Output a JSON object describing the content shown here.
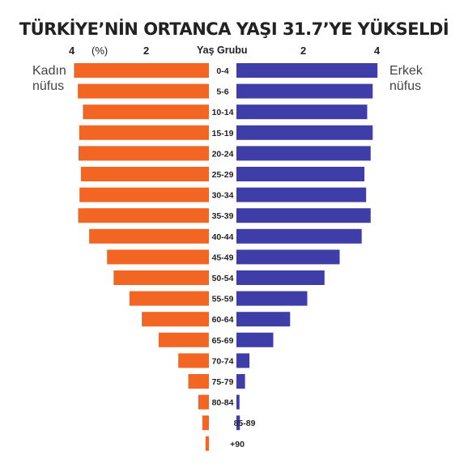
{
  "chart_data": {
    "type": "bar",
    "title": "TÜRKİYE’NİN ORTANCA YAŞI 31.7’YE YÜKSELDİ",
    "unit_label": "(%)",
    "category_label": "Yaş Grubu",
    "left_label": [
      "Kadın",
      "nüfus"
    ],
    "right_label": [
      "Erkek",
      "nüfus"
    ],
    "axis_ticks": [
      "4",
      "2",
      "2",
      "4"
    ],
    "xlim": [
      -4,
      4
    ],
    "categories": [
      "0-4",
      "5-6",
      "10-14",
      "15-19",
      "20-24",
      "25-29",
      "30-34",
      "35-39",
      "40-44",
      "45-49",
      "50-54",
      "55-59",
      "60-64",
      "65-69",
      "70-74",
      "75-79",
      "80-84",
      "85-89",
      "+90"
    ],
    "series": [
      {
        "name": "Kadın nüfus",
        "color": "#f26522",
        "values": [
          3.92,
          3.81,
          3.66,
          3.77,
          3.79,
          3.72,
          3.76,
          3.8,
          3.48,
          2.96,
          2.77,
          2.31,
          1.95,
          1.46,
          0.89,
          0.6,
          0.31,
          0.19,
          0.1
        ]
      },
      {
        "name": "Erkek nüfus",
        "color": "#3f3ea8",
        "values": [
          4.1,
          3.96,
          3.8,
          3.96,
          3.9,
          3.72,
          3.77,
          3.9,
          3.64,
          3.0,
          2.56,
          2.06,
          1.56,
          1.07,
          0.38,
          0.25,
          0.09,
          0.1,
          0.0
        ]
      }
    ]
  }
}
